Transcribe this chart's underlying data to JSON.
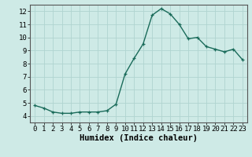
{
  "x": [
    0,
    1,
    2,
    3,
    4,
    5,
    6,
    7,
    8,
    9,
    10,
    11,
    12,
    13,
    14,
    15,
    16,
    17,
    18,
    19,
    20,
    21,
    22,
    23
  ],
  "y": [
    4.8,
    4.6,
    4.3,
    4.2,
    4.2,
    4.3,
    4.3,
    4.3,
    4.4,
    4.9,
    7.2,
    8.4,
    9.5,
    11.7,
    12.2,
    11.8,
    11.0,
    9.9,
    10.0,
    9.3,
    9.1,
    8.9,
    9.1,
    8.3
  ],
  "line_color": "#1a6b5a",
  "marker": "+",
  "marker_color": "#1a6b5a",
  "bg_color": "#ceeae6",
  "grid_color": "#b0d4d0",
  "axis_color": "#555555",
  "xlabel": "Humidex (Indice chaleur)",
  "xlim": [
    -0.5,
    23.5
  ],
  "ylim": [
    3.5,
    12.5
  ],
  "yticks": [
    4,
    5,
    6,
    7,
    8,
    9,
    10,
    11,
    12
  ],
  "xticks": [
    0,
    1,
    2,
    3,
    4,
    5,
    6,
    7,
    8,
    9,
    10,
    11,
    12,
    13,
    14,
    15,
    16,
    17,
    18,
    19,
    20,
    21,
    22,
    23
  ],
  "xlabel_fontsize": 7.5,
  "tick_fontsize": 6.5,
  "linewidth": 1.0,
  "markersize": 3.5,
  "markeredgewidth": 0.9
}
